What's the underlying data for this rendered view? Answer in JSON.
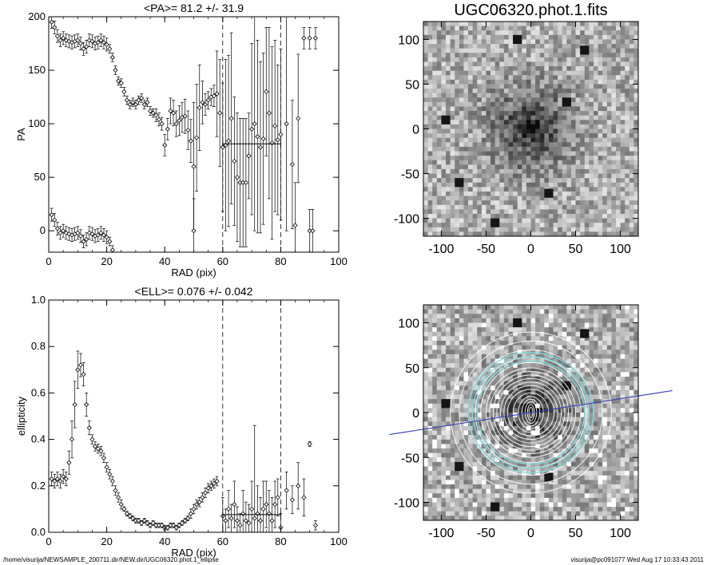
{
  "footer": {
    "left": "/home/visurija/NEWSAMPLE_200711.dir/NEW.dir/UGC06320.phot.1_ellipse",
    "right": "visurija@pc091077  Wed Aug 17 10:33:43 2011"
  },
  "chart_data": [
    {
      "type": "scatter",
      "title": "<PA>=  81.2 +/-  31.9",
      "xlabel": "RAD (pix)",
      "ylabel": "PA",
      "xlim": [
        0,
        100
      ],
      "ylim": [
        -20,
        200
      ],
      "xticks": [
        "0",
        "20",
        "40",
        "60",
        "80",
        "100"
      ],
      "yticks": [
        "0",
        "50",
        "100",
        "150",
        "200"
      ],
      "vlines": [
        60,
        80
      ],
      "mean_segment": {
        "x": [
          60,
          80
        ],
        "y": 81.2
      },
      "series": [
        {
          "x": [
            1,
            2,
            3,
            4,
            5,
            6,
            7,
            8,
            9,
            10,
            11,
            12,
            13,
            14,
            15,
            16,
            17,
            18,
            19,
            20,
            21,
            22,
            23,
            24,
            25,
            26,
            27,
            28,
            29,
            30,
            31,
            32,
            33,
            34,
            35,
            36,
            37,
            38,
            39,
            40,
            41,
            42,
            43,
            44,
            45,
            46,
            47,
            48,
            49,
            50,
            51,
            52,
            53,
            54,
            55,
            56,
            57,
            58,
            59,
            60,
            61,
            62,
            63,
            64,
            65,
            66,
            67,
            68,
            69,
            70,
            71,
            72,
            73,
            74,
            75,
            76,
            77,
            78,
            79,
            80,
            82,
            84,
            86,
            88,
            90,
            92
          ],
          "y": [
            195,
            190,
            182,
            178,
            180,
            178,
            177,
            176,
            177,
            178,
            175,
            170,
            172,
            178,
            177,
            175,
            176,
            178,
            176,
            174,
            170,
            162,
            150,
            140,
            138,
            130,
            122,
            118,
            120,
            118,
            122,
            124,
            118,
            120,
            112,
            110,
            108,
            104,
            100,
            80,
            95,
            112,
            110,
            100,
            103,
            106,
            107,
            94,
            84,
            60,
            87,
            115,
            120,
            118,
            122,
            125,
            126,
            128,
            110,
            78,
            80,
            84,
            105,
            65,
            50,
            45,
            45,
            45,
            70,
            95,
            100,
            88,
            78,
            86,
            130,
            110,
            82,
            98,
            85,
            90,
            100,
            62,
            105,
            180,
            180,
            180
          ],
          "err": [
            6,
            6,
            6,
            6,
            6,
            6,
            6,
            6,
            6,
            6,
            6,
            6,
            6,
            6,
            6,
            6,
            6,
            6,
            6,
            6,
            4,
            4,
            4,
            4,
            4,
            4,
            4,
            4,
            4,
            4,
            4,
            4,
            4,
            4,
            4,
            4,
            6,
            6,
            6,
            10,
            10,
            12,
            12,
            12,
            14,
            14,
            16,
            18,
            20,
            60,
            50,
            40,
            20,
            10,
            8,
            8,
            10,
            40,
            50,
            60,
            80,
            80,
            80,
            60,
            60,
            60,
            60,
            60,
            40,
            80,
            100,
            90,
            80,
            80,
            60,
            80,
            90,
            80,
            70,
            80,
            100,
            60,
            60,
            10,
            10,
            10
          ]
        },
        {
          "x": [
            1,
            2,
            3,
            4,
            5,
            6,
            7,
            8,
            9,
            10,
            11,
            12,
            13,
            14,
            15,
            16,
            17,
            18,
            19,
            20,
            21,
            22,
            50,
            85,
            90,
            91
          ],
          "y": [
            15,
            10,
            2,
            -2,
            0,
            -2,
            -3,
            -4,
            -3,
            -2,
            -5,
            -10,
            -8,
            -2,
            -3,
            -5,
            -4,
            -2,
            -4,
            -6,
            -10,
            -18,
            0,
            5,
            0,
            0
          ],
          "err": [
            6,
            6,
            6,
            6,
            6,
            6,
            6,
            6,
            6,
            6,
            6,
            6,
            6,
            6,
            6,
            6,
            6,
            6,
            6,
            6,
            4,
            4,
            30,
            40,
            20,
            20
          ]
        }
      ]
    },
    {
      "type": "scatter",
      "title": "<ELL>= 0.076 +/-  0.042",
      "xlabel": "RAD (pix)",
      "ylabel": "ellipticity",
      "xlim": [
        0,
        100
      ],
      "ylim": [
        0,
        1
      ],
      "xticks": [
        "0",
        "20",
        "40",
        "60",
        "80",
        "100"
      ],
      "yticks": [
        "0.0",
        "0.2",
        "0.4",
        "0.6",
        "0.8",
        "1.0"
      ],
      "vlines": [
        60,
        80
      ],
      "mean_segment": {
        "x": [
          60,
          80
        ],
        "y": 0.076
      },
      "series": [
        {
          "x": [
            1,
            2,
            3,
            4,
            5,
            6,
            7,
            8,
            9,
            10,
            11,
            12,
            13,
            14,
            15,
            16,
            17,
            18,
            19,
            20,
            21,
            22,
            23,
            24,
            25,
            26,
            27,
            28,
            29,
            30,
            31,
            32,
            33,
            34,
            35,
            36,
            37,
            38,
            39,
            40,
            41,
            42,
            43,
            44,
            45,
            46,
            47,
            48,
            49,
            50,
            51,
            52,
            53,
            54,
            55,
            56,
            57,
            58,
            60,
            61,
            62,
            63,
            64,
            65,
            66,
            67,
            68,
            69,
            70,
            71,
            72,
            73,
            74,
            75,
            76,
            77,
            78,
            79,
            80,
            82,
            84,
            86,
            88,
            90,
            92
          ],
          "y": [
            0.23,
            0.22,
            0.23,
            0.22,
            0.24,
            0.23,
            0.3,
            0.4,
            0.55,
            0.7,
            0.72,
            0.68,
            0.55,
            0.45,
            0.4,
            0.37,
            0.36,
            0.35,
            0.32,
            0.28,
            0.25,
            0.22,
            0.18,
            0.15,
            0.12,
            0.1,
            0.08,
            0.07,
            0.06,
            0.05,
            0.05,
            0.04,
            0.05,
            0.04,
            0.03,
            0.04,
            0.03,
            0.03,
            0.03,
            0.02,
            0.02,
            0.03,
            0.03,
            0.02,
            0.03,
            0.04,
            0.05,
            0.06,
            0.08,
            0.1,
            0.12,
            0.13,
            0.15,
            0.17,
            0.19,
            0.2,
            0.21,
            0.22,
            0.07,
            0.05,
            0.1,
            0.06,
            0.12,
            0.05,
            0.03,
            0.08,
            0.05,
            0.04,
            0.1,
            0.06,
            0.08,
            0.05,
            0.1,
            0.12,
            0.08,
            0.05,
            0.12,
            0.15,
            0.02,
            0.18,
            0.14,
            0.2,
            0.15,
            0.38,
            0.03
          ],
          "err": [
            0.03,
            0.03,
            0.03,
            0.03,
            0.03,
            0.03,
            0.05,
            0.08,
            0.1,
            0.08,
            0.05,
            0.05,
            0.05,
            0.03,
            0.02,
            0.02,
            0.02,
            0.02,
            0.02,
            0.02,
            0.02,
            0.02,
            0.02,
            0.02,
            0.02,
            0.01,
            0.01,
            0.01,
            0.01,
            0.01,
            0.01,
            0.01,
            0.01,
            0.01,
            0.01,
            0.01,
            0.01,
            0.01,
            0.01,
            0.01,
            0.01,
            0.01,
            0.01,
            0.01,
            0.01,
            0.01,
            0.01,
            0.01,
            0.02,
            0.02,
            0.02,
            0.02,
            0.02,
            0.02,
            0.02,
            0.02,
            0.02,
            0.02,
            0.08,
            0.05,
            0.08,
            0.06,
            0.1,
            0.06,
            0.05,
            0.1,
            0.08,
            0.08,
            0.12,
            0.4,
            0.12,
            0.1,
            0.12,
            0.1,
            0.1,
            0.1,
            0.1,
            0.08,
            0.06,
            0.08,
            0.06,
            0.1,
            0.08,
            0.01,
            0.02
          ]
        }
      ]
    },
    {
      "type": "heatmap",
      "title": "UGC06320.phot.1.fits",
      "xlim": [
        -120,
        120
      ],
      "ylim": [
        -120,
        120
      ],
      "xticks": [
        "-100",
        "-50",
        "0",
        "50",
        "100"
      ],
      "yticks": [
        "-100",
        "-50",
        "0",
        "50",
        "100"
      ]
    },
    {
      "type": "heatmap",
      "title": "",
      "xlim": [
        -120,
        120
      ],
      "ylim": [
        -120,
        120
      ],
      "xticks": [
        "-100",
        "-50",
        "0",
        "50",
        "100"
      ],
      "yticks": [
        "-100",
        "-50",
        "0",
        "50",
        "100"
      ],
      "pa_line_angle_deg": 81.2,
      "colors": {
        "pa_line": "#3b45b5",
        "outer_rings": "#7fd8dc",
        "rings": "#ffffff"
      }
    }
  ]
}
